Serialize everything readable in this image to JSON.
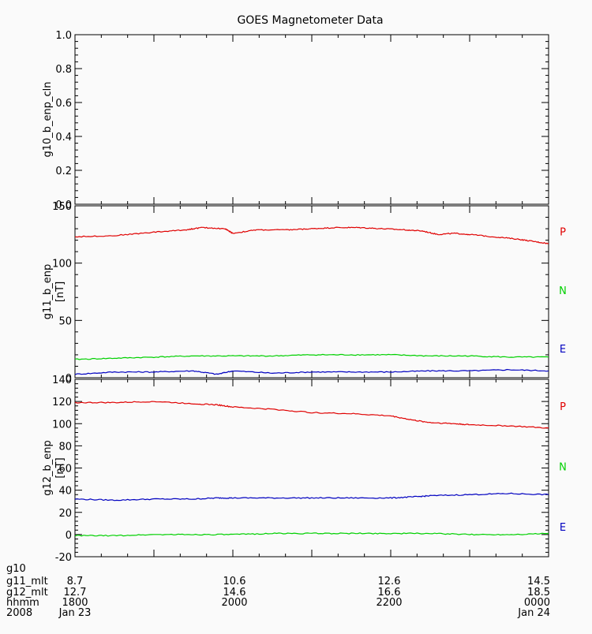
{
  "chart_data": {
    "type": "line",
    "title": "GOES Magnetometer Data",
    "x_range_hours": [
      18,
      24
    ],
    "panels": [
      {
        "ylabel": "g10_b_enp_cln",
        "yunit": "",
        "ylim": [
          0,
          1
        ],
        "yticks": [
          "0.0",
          "0.2",
          "0.4",
          "0.6",
          "0.8",
          "1.0"
        ],
        "ytick_values": [
          0,
          0.2,
          0.4,
          0.6,
          0.8,
          1.0
        ],
        "series": []
      },
      {
        "ylabel": "g11_b_enp",
        "yunit": "[nT]",
        "ylim": [
          0,
          150
        ],
        "yticks": [
          "0",
          "50",
          "100",
          "150"
        ],
        "ytick_values": [
          0,
          50,
          100,
          150
        ],
        "series": [
          {
            "name": "P",
            "color": "#e00000",
            "x": [
              18.0,
              18.5,
              19.0,
              19.4,
              19.6,
              19.9,
              20.0,
              20.3,
              20.7,
              21.0,
              21.3,
              21.6,
              21.9,
              22.2,
              22.4,
              22.6,
              22.8,
              23.0,
              23.3,
              23.6,
              23.8,
              24.0
            ],
            "y": [
              123,
              124,
              127,
              129,
              131,
              130,
              126,
              129,
              129,
              130,
              131,
              131,
              130,
              129,
              128,
              125,
              126,
              125,
              123,
              121,
              119,
              117
            ]
          },
          {
            "name": "N",
            "color": "#00d000",
            "x": [
              18.0,
              18.5,
              19.0,
              19.5,
              20.0,
              20.5,
              21.0,
              21.5,
              22.0,
              22.5,
              23.0,
              23.5,
              24.0
            ],
            "y": [
              16,
              17,
              18,
              19,
              19,
              19,
              20,
              20,
              20,
              19,
              19,
              18,
              18
            ]
          },
          {
            "name": "E",
            "color": "#0000c0",
            "x": [
              18.0,
              18.5,
              19.0,
              19.5,
              19.8,
              20.0,
              20.5,
              21.0,
              21.5,
              22.0,
              22.5,
              23.0,
              23.5,
              24.0
            ],
            "y": [
              3,
              5,
              5,
              6,
              3,
              6,
              4,
              5,
              5,
              5,
              6,
              6,
              7,
              6
            ]
          }
        ]
      },
      {
        "ylabel": "g12_b_enp",
        "yunit": "[nT]",
        "ylim": [
          -20,
          140
        ],
        "yticks": [
          "-20",
          "0",
          "20",
          "40",
          "60",
          "80",
          "100",
          "120",
          "140"
        ],
        "ytick_values": [
          -20,
          0,
          20,
          40,
          60,
          80,
          100,
          120,
          140
        ],
        "series": [
          {
            "name": "P",
            "color": "#e00000",
            "x": [
              18.0,
              18.5,
              19.0,
              19.5,
              19.8,
              20.0,
              20.5,
              21.0,
              21.5,
              22.0,
              22.3,
              22.5,
              22.8,
              23.0,
              23.5,
              24.0
            ],
            "y": [
              119,
              119,
              120,
              118,
              117,
              115,
              113,
              110,
              109,
              107,
              103,
              101,
              100,
              99,
              98,
              96
            ]
          },
          {
            "name": "N",
            "color": "#00d000",
            "x": [
              18.0,
              18.5,
              19.0,
              19.5,
              20.0,
              20.5,
              21.0,
              21.5,
              22.0,
              22.5,
              23.0,
              23.5,
              24.0
            ],
            "y": [
              -1,
              -1,
              0,
              0,
              0,
              1,
              1,
              1,
              1,
              1,
              0,
              0,
              1
            ]
          },
          {
            "name": "E",
            "color": "#0000c0",
            "x": [
              18.0,
              18.5,
              19.0,
              19.5,
              19.8,
              20.0,
              20.5,
              21.0,
              21.5,
              22.0,
              22.3,
              22.5,
              23.0,
              23.5,
              24.0
            ],
            "y": [
              32,
              31,
              32,
              32,
              33,
              33,
              33,
              33,
              33,
              33,
              34,
              35,
              36,
              37,
              36
            ]
          }
        ]
      }
    ],
    "legend": [
      "P",
      "N",
      "E"
    ],
    "xaxis_rows": [
      {
        "label": "g10",
        "values": [
          "",
          "",
          "",
          ""
        ]
      },
      {
        "label": "g11_mlt",
        "values": [
          "8.7",
          "10.6",
          "12.6",
          "14.5"
        ]
      },
      {
        "label": "g12_mlt",
        "values": [
          "12.7",
          "14.6",
          "16.6",
          "18.5"
        ]
      },
      {
        "label": "hhmm",
        "values": [
          "1800",
          "2000",
          "2200",
          "0000"
        ]
      },
      {
        "label": "2008",
        "values": [
          "Jan 23",
          "",
          "",
          "Jan 24"
        ]
      }
    ]
  }
}
